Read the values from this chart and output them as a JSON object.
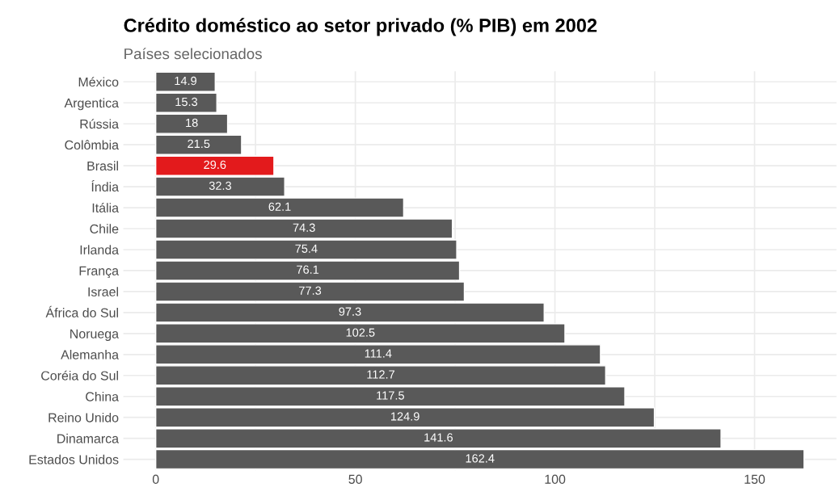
{
  "chart_data": {
    "type": "bar",
    "orientation": "horizontal",
    "title": "Crédito doméstico ao setor privado (% PIB) em 2002",
    "subtitle": "Países selecionados",
    "categories": [
      "México",
      "Argentica",
      "Rússia",
      "Colômbia",
      "Brasil",
      "Índia",
      "Itália",
      "Chile",
      "Irlanda",
      "França",
      "Israel",
      "África do Sul",
      "Noruega",
      "Alemanha",
      "Coréia do Sul",
      "China",
      "Reino Unido",
      "Dinamarca",
      "Estados Unidos"
    ],
    "values": [
      14.9,
      15.3,
      18,
      21.5,
      29.6,
      32.3,
      62.1,
      74.3,
      75.4,
      76.1,
      77.3,
      97.3,
      102.5,
      111.4,
      112.7,
      117.5,
      124.9,
      141.6,
      162.4
    ],
    "colors": [
      "#595959",
      "#595959",
      "#595959",
      "#595959",
      "#e31a1c",
      "#595959",
      "#595959",
      "#595959",
      "#595959",
      "#595959",
      "#595959",
      "#595959",
      "#595959",
      "#595959",
      "#595959",
      "#595959",
      "#595959",
      "#595959",
      "#595959"
    ],
    "xlim": [
      -8.12,
      170.52
    ],
    "xticks": [
      0,
      {
        "value": 25,
        "label": null
      },
      50,
      {
        "value": 75,
        "label": null
      },
      100,
      {
        "value": 125,
        "label": null
      },
      150
    ],
    "grid": true,
    "data_labels": true
  }
}
